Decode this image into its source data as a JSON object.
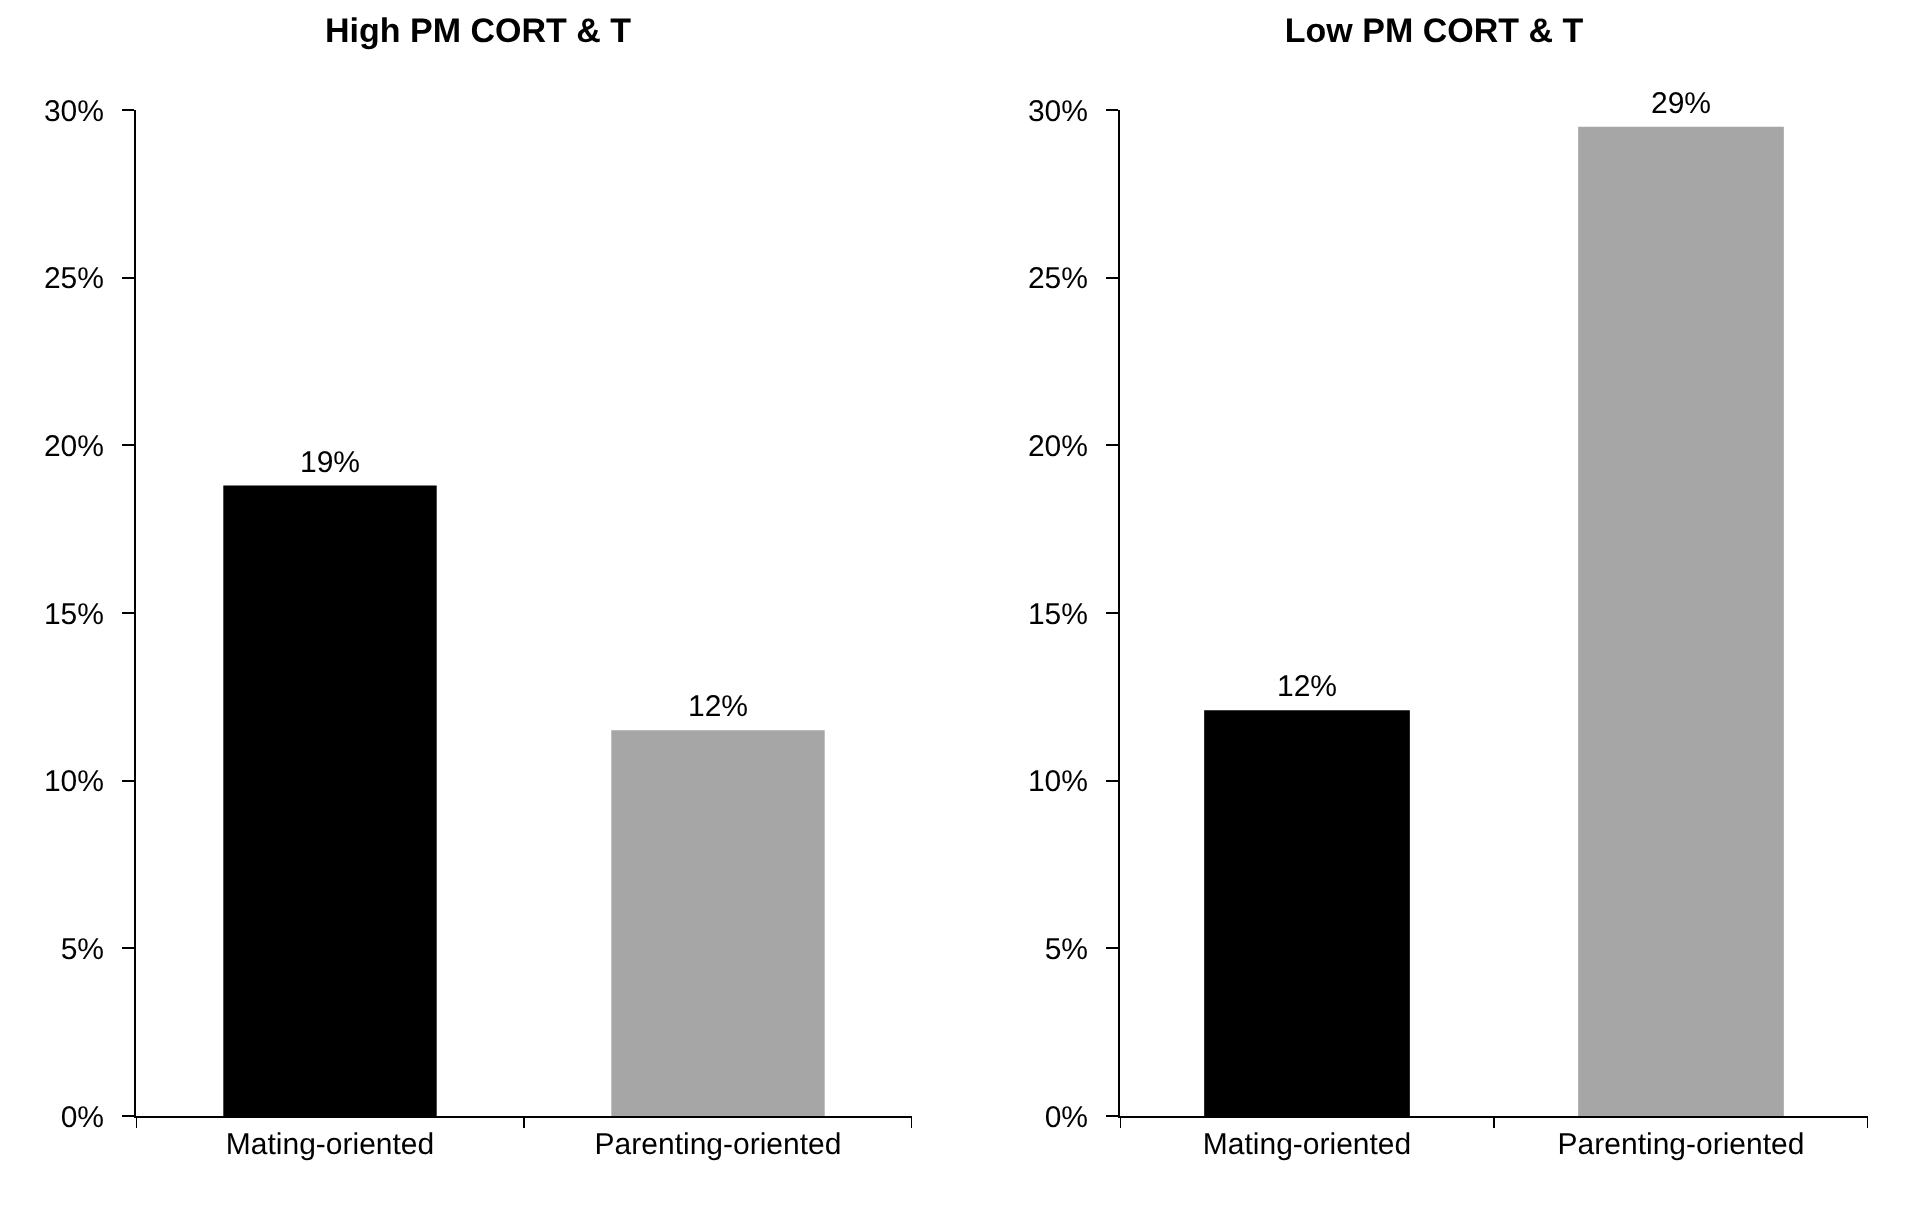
{
  "chart_data": [
    {
      "type": "bar",
      "title": "High PM CORT & T",
      "categories": [
        "Mating-oriented",
        "Parenting-oriented"
      ],
      "values": [
        18.8,
        11.5
      ],
      "colors": [
        "#000000",
        "#a6a6a6"
      ],
      "value_labels": [
        "19%",
        "12%"
      ],
      "ylim": [
        0,
        30
      ],
      "yticks": [
        {
          "value": 0,
          "label": "0%"
        },
        {
          "value": 5,
          "label": "5%"
        },
        {
          "value": 10,
          "label": "10%"
        },
        {
          "value": 15,
          "label": "15%"
        },
        {
          "value": 20,
          "label": "20%"
        },
        {
          "value": 25,
          "label": "25%"
        },
        {
          "value": 30,
          "label": "30%"
        }
      ],
      "grid": false,
      "legend": false
    },
    {
      "type": "bar",
      "title": "Low PM CORT & T",
      "categories": [
        "Mating-oriented",
        "Parenting-oriented"
      ],
      "values": [
        12.1,
        29.5
      ],
      "colors": [
        "#000000",
        "#a6a6a6"
      ],
      "value_labels": [
        "12%",
        "29%"
      ],
      "ylim": [
        0,
        30
      ],
      "yticks": [
        {
          "value": 0,
          "label": "0%"
        },
        {
          "value": 5,
          "label": "5%"
        },
        {
          "value": 10,
          "label": "10%"
        },
        {
          "value": 15,
          "label": "15%"
        },
        {
          "value": 20,
          "label": "20%"
        },
        {
          "value": 25,
          "label": "25%"
        },
        {
          "value": 30,
          "label": "30%"
        }
      ],
      "grid": false,
      "legend": false
    }
  ]
}
